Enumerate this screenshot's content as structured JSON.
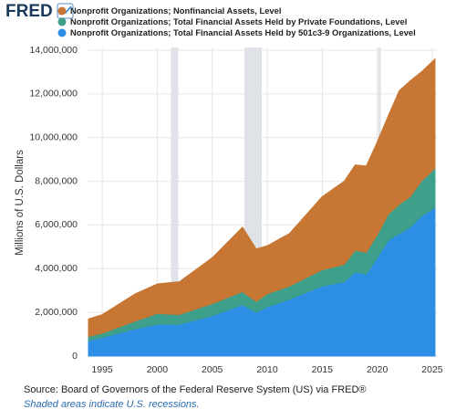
{
  "logo": "FRED",
  "chart_data": {
    "type": "area",
    "stacked": true,
    "y_label": "Millions of U.S. Dollars",
    "x": [
      1993.75,
      1995,
      1998,
      2000,
      2002,
      2005,
      2007.75,
      2009,
      2010,
      2012,
      2015,
      2017,
      2018,
      2019,
      2020,
      2021,
      2022,
      2023,
      2024,
      2025.25
    ],
    "series": [
      {
        "name": "Nonprofit Organizations; Nonfinancial Assets, Level",
        "color": "#c87634",
        "values": [
          800000,
          850000,
          1250000,
          1350000,
          1500000,
          2100000,
          2950000,
          2400000,
          2200000,
          2400000,
          3350000,
          3800000,
          3900000,
          3950000,
          4250000,
          4500000,
          5200000,
          5300000,
          5000000,
          5000000
        ]
      },
      {
        "name": "Nonprofit Organizations; Total Financial Assets Held by Private Foundations, Level",
        "color": "#3e9f8a",
        "values": [
          200000,
          200000,
          350000,
          500000,
          450000,
          550000,
          600000,
          500000,
          600000,
          600000,
          750000,
          800000,
          1000000,
          1000000,
          1050000,
          1200000,
          1350000,
          1400000,
          1600000,
          1800000
        ]
      },
      {
        "name": "Nonprofit Organizations; Total Financial Assets Held by 501c3-9 Organizations, Level",
        "color": "#2d8ee6",
        "values": [
          700000,
          850000,
          1250000,
          1450000,
          1450000,
          1850000,
          2350000,
          2000000,
          2250000,
          2600000,
          3200000,
          3400000,
          3850000,
          3750000,
          4500000,
          5300000,
          5600000,
          5900000,
          6400000,
          6800000
        ]
      }
    ],
    "xlim": [
      1993.75,
      2025.5
    ],
    "xticks": [
      1995,
      2000,
      2005,
      2010,
      2015,
      2020,
      2025
    ],
    "ylim": [
      0,
      14000000
    ],
    "yticks": [
      0,
      {
        "value": 2000000,
        "label": "2,000,000"
      },
      {
        "value": 4000000,
        "label": "4,000,000"
      },
      {
        "value": 6000000,
        "label": "6,000,000"
      },
      {
        "value": 8000000,
        "label": "8,000,000"
      },
      {
        "value": 10000000,
        "label": "10,000,000"
      },
      {
        "value": 12000000,
        "label": "12,000,000"
      },
      {
        "value": 14000000,
        "label": "14,000,000"
      }
    ],
    "grid": true,
    "recessions": [
      [
        2001.25,
        2001.92
      ],
      [
        2007.92,
        2009.5
      ],
      [
        2020.08,
        2020.33
      ]
    ],
    "recession_color": "#dfe3e8"
  },
  "source": "Source: Board of Governors of the Federal Reserve System (US) via FRED®",
  "note": "Shaded areas indicate U.S. recessions."
}
